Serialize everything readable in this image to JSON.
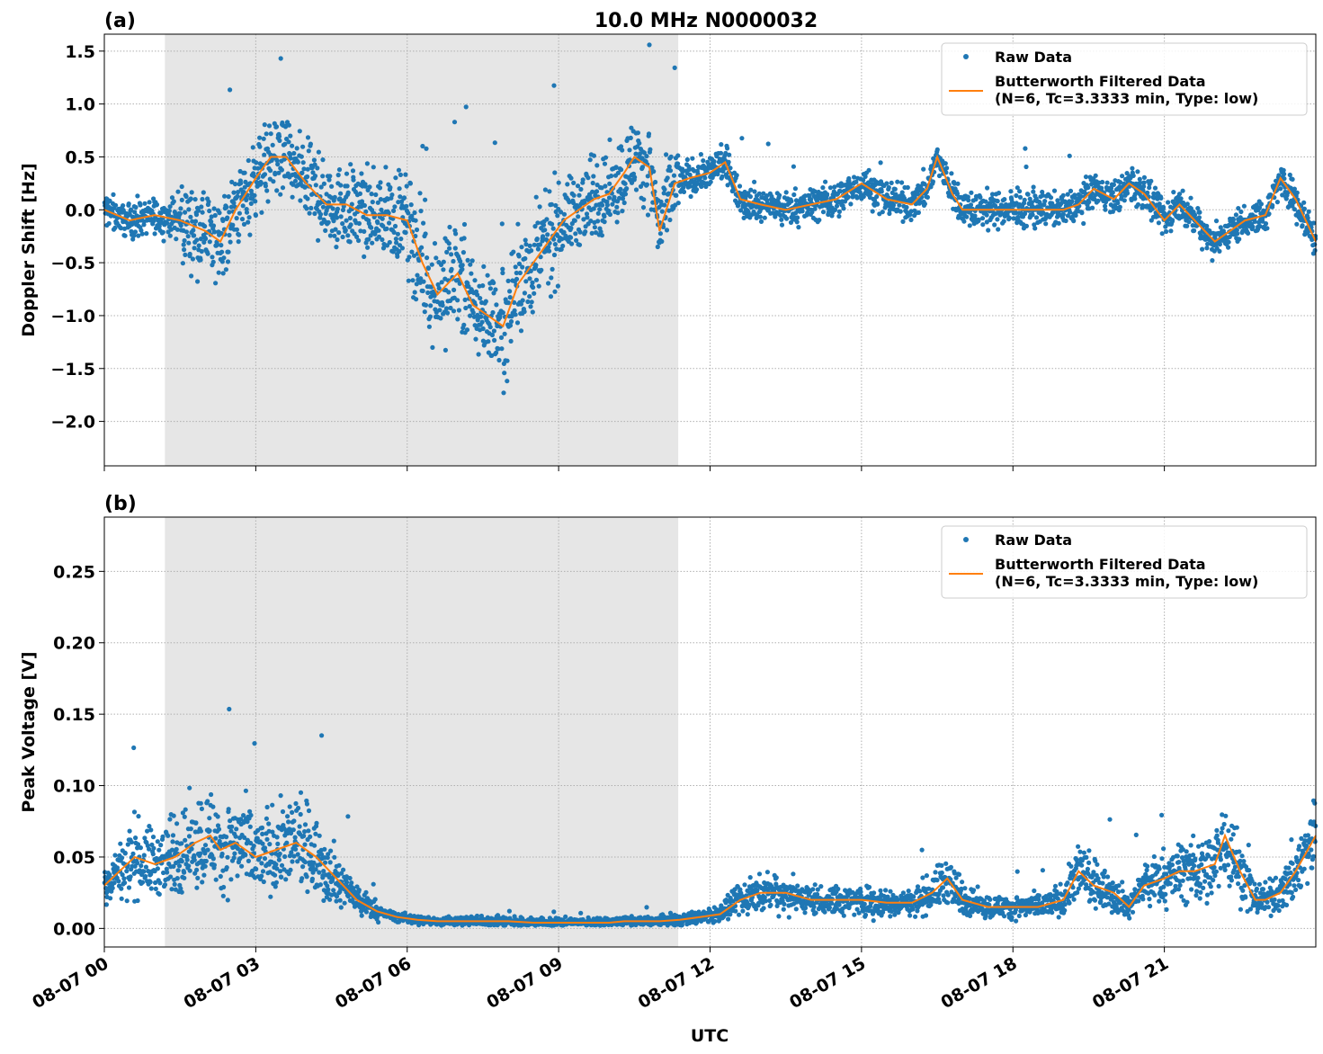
{
  "figure": {
    "title": "10.0 MHz N0000032",
    "xlabel": "UTC",
    "xticks": [
      "08-07 00",
      "08-07 03",
      "08-07 06",
      "08-07 09",
      "08-07 12",
      "08-07 15",
      "08-07 18",
      "08-07 21"
    ]
  },
  "colors": {
    "raw": "#1f77b4",
    "filtered": "#ff7f0e",
    "shade": "#e6e6e6",
    "grid": "#b0b0b0"
  },
  "chart_data": [
    {
      "panel": "(a)",
      "type": "scatter",
      "ylabel": "Doppler Shift [Hz]",
      "xlim": [
        0,
        24
      ],
      "ylim": [
        -2.42,
        1.66
      ],
      "yticks": [
        "1.5",
        "1.0",
        "0.5",
        "0.0",
        "−0.5",
        "−1.0",
        "−1.5",
        "−2.0"
      ],
      "ytick_values": [
        1.5,
        1.0,
        0.5,
        0.0,
        -0.5,
        -1.0,
        -1.5,
        -2.0
      ],
      "shaded_span": [
        1.2,
        11.37
      ],
      "grid": true,
      "legend_position": "top-right",
      "legend": [
        "Raw Data",
        "Butterworth Filtered Data",
        "(N=6, Tc=3.3333 min, Type: low)"
      ],
      "series": [
        {
          "name": "Butterworth Filtered Data",
          "x": [
            0,
            0.5,
            1,
            1.5,
            2,
            2.3,
            2.6,
            3,
            3.3,
            3.6,
            4,
            4.4,
            4.8,
            5.2,
            5.6,
            6,
            6.3,
            6.6,
            7,
            7.3,
            7.6,
            7.9,
            8.2,
            8.5,
            8.8,
            9.1,
            9.4,
            9.7,
            10,
            10.3,
            10.5,
            10.8,
            11,
            11.3,
            11.6,
            12,
            12.3,
            12.6,
            13,
            13.5,
            14,
            14.5,
            15,
            15.5,
            16,
            16.3,
            16.5,
            16.8,
            17,
            17.5,
            18,
            18.5,
            19,
            19.3,
            19.6,
            20,
            20.3,
            20.6,
            21,
            21.3,
            21.6,
            22,
            22.3,
            22.6,
            23,
            23.3,
            23.6,
            24
          ],
          "y": [
            0.0,
            -0.1,
            -0.05,
            -0.1,
            -0.2,
            -0.3,
            0.0,
            0.3,
            0.5,
            0.5,
            0.25,
            0.05,
            0.05,
            -0.05,
            -0.05,
            -0.1,
            -0.5,
            -0.8,
            -0.6,
            -0.9,
            -1.0,
            -1.1,
            -0.7,
            -0.5,
            -0.3,
            -0.1,
            0.0,
            0.1,
            0.15,
            0.35,
            0.5,
            0.4,
            -0.2,
            0.25,
            0.3,
            0.35,
            0.45,
            0.1,
            0.05,
            0.0,
            0.05,
            0.1,
            0.25,
            0.1,
            0.05,
            0.2,
            0.5,
            0.15,
            0.0,
            0.0,
            0.0,
            0.0,
            0.0,
            0.05,
            0.2,
            0.1,
            0.25,
            0.15,
            -0.1,
            0.05,
            -0.1,
            -0.3,
            -0.2,
            -0.1,
            -0.05,
            0.3,
            0.1,
            -0.3
          ]
        }
      ]
    },
    {
      "panel": "(b)",
      "type": "scatter",
      "ylabel": "Peak Voltage [V]",
      "xlim": [
        0,
        24
      ],
      "ylim": [
        -0.013,
        0.288
      ],
      "yticks": [
        "0.25",
        "0.20",
        "0.15",
        "0.10",
        "0.05",
        "0.00"
      ],
      "ytick_values": [
        0.25,
        0.2,
        0.15,
        0.1,
        0.05,
        0.0
      ],
      "shaded_span": [
        1.2,
        11.37
      ],
      "grid": true,
      "legend_position": "top-right",
      "legend": [
        "Raw Data",
        "Butterworth Filtered Data",
        "(N=6, Tc=3.3333 min, Type: low)"
      ],
      "series": [
        {
          "name": "Butterworth Filtered Data",
          "x": [
            0,
            0.3,
            0.6,
            1,
            1.4,
            1.8,
            2.1,
            2.3,
            2.6,
            3,
            3.4,
            3.8,
            4.2,
            4.6,
            5,
            5.4,
            5.8,
            6.2,
            6.6,
            7,
            7.5,
            8,
            8.5,
            9,
            9.5,
            10,
            10.3,
            10.6,
            11,
            11.4,
            11.8,
            12.2,
            12.6,
            13,
            13.5,
            14,
            14.5,
            15,
            15.5,
            16,
            16.4,
            16.7,
            17,
            17.5,
            18,
            18.5,
            19,
            19.3,
            19.6,
            20,
            20.3,
            20.6,
            21,
            21.3,
            21.6,
            22,
            22.2,
            22.5,
            22.8,
            23,
            23.3,
            23.6,
            24
          ],
          "y": [
            0.03,
            0.04,
            0.05,
            0.045,
            0.05,
            0.06,
            0.065,
            0.055,
            0.06,
            0.05,
            0.055,
            0.06,
            0.05,
            0.035,
            0.02,
            0.012,
            0.008,
            0.006,
            0.005,
            0.005,
            0.005,
            0.005,
            0.004,
            0.004,
            0.004,
            0.004,
            0.005,
            0.005,
            0.005,
            0.006,
            0.008,
            0.01,
            0.02,
            0.025,
            0.025,
            0.02,
            0.02,
            0.02,
            0.018,
            0.018,
            0.025,
            0.035,
            0.02,
            0.015,
            0.015,
            0.015,
            0.02,
            0.04,
            0.03,
            0.025,
            0.015,
            0.03,
            0.035,
            0.04,
            0.04,
            0.045,
            0.065,
            0.04,
            0.02,
            0.02,
            0.025,
            0.04,
            0.065
          ]
        }
      ]
    }
  ]
}
